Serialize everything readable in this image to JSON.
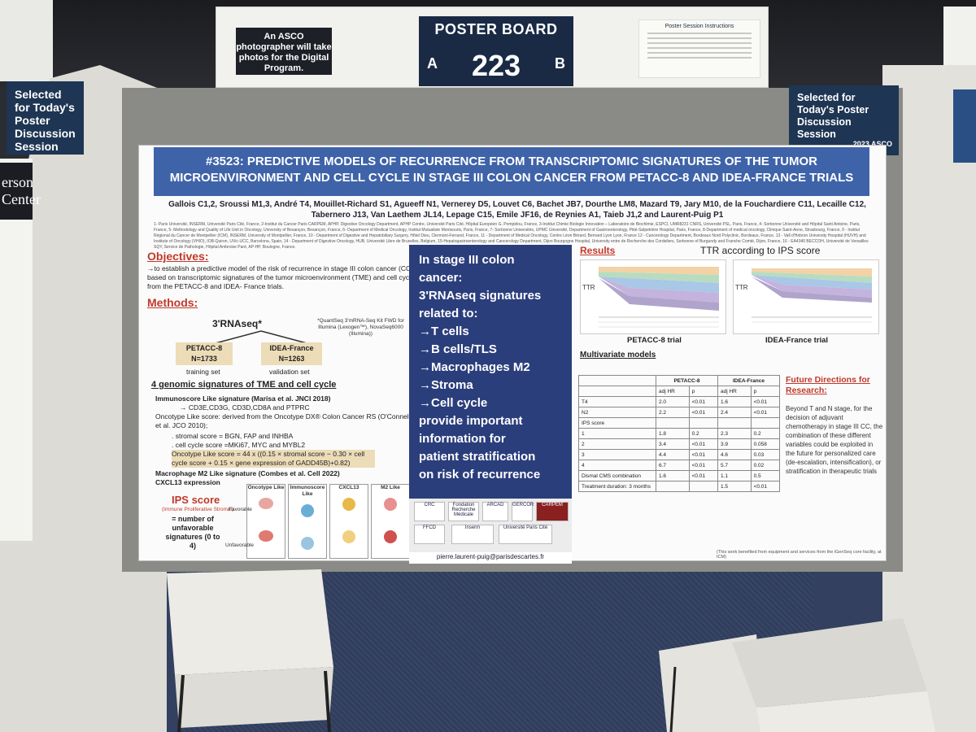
{
  "top_board": {
    "photo_note": "An ASCO photographer will take photos for the Digital Program.",
    "board_label": "POSTER BOARD",
    "board_number": "223",
    "side_a": "A",
    "side_b": "B",
    "instructions_title": "Poster Session Instructions"
  },
  "side_signs": {
    "left_selected": "Selected for Today's Poster Discussion Session",
    "left_dark_text": "erson Center",
    "right_selected": "Selected for Today's Poster Discussion Session",
    "right_logo": "2023 ASCO"
  },
  "poster": {
    "title": "#3523: PREDICTIVE MODELS OF RECURRENCE FROM TRANSCRIPTOMIC SIGNATURES OF THE TUMOR MICROENVIRONMENT AND CELL CYCLE IN STAGE III COLON CANCER FROM PETACC-8 AND IDEA-FRANCE TRIALS",
    "authors": "Gallois C1,2, Sroussi M1,3, André T4, Mouillet-Richard S1, Agueeff N1, Vernerey D5, Louvet C6, Bachet JB7, Dourthe LM8, Mazard T9, Jary M10, de la Fouchardiere C11, Lecaille C12, Tabernero J13, Van Laethem JL14, Lepage C15, Emile JF16, de Reynies A1, Taieb J1,2 and Laurent-Puig P1",
    "affiliations": "1- Paris Université, INSERM, Université Paris Cité, France, 2-Institut du Cancer Paris CARPEM, APHP, Digestive Oncology Department, APHP Centre, Université Paris Cité, Hôpital Européen G. Pompidou, France, 3-Institut Chimie Biologie Innovation – Laboratoire de Biochimie, ESPCI, UMR8231 CNRS, Université PSL, Paris, France, 4- Sorbonne Université and Hôpital Saint Antoine, Paris, France, 5- Methodology and Quality of Life Unit in Oncology, University of Besançon, Besançon, France, 6- Department of Medical Oncology, Institut Mutualiste Montsouris, Paris, France, 7- Sorbonne Universités, UPMC Université, Department of Gastroenterology, Pitié-Salpetrière Hospital, Paris, France, 8-Department of medical oncology, Clinique Saint-Anne, Strasbourg, France, 9 - Institut Régional du Cancer de Montpellier (ICM), INSERM, University of Montpellier, France, 10 - Department of Digestive and Hepatobiliary Surgery, Hôtel Dieu, Clermont-Ferrand, France, 11 - Department of Medical Oncology, Centre Léon Bérard, Bernard Lyon Lyon, France 12 - Cancerology Department, Bordeaux Nord Polyclinic, Bordeaux, France, 13 - Vall d'Hebron University Hospital (HUVH) and Institute of Oncology (VHIO), IOB-Quiron, UVic-UCC, Barcelona, Spain, 14 - Department of Digestive Oncology, HUB, Université Libre de Bruxelles, Belgium, 15-Hepatogastroenterology and Cancerology Department, Dijon Bourgogne Hospital, University entre de Recherche des Cordeliers, Sorbonne of Burgundy and Franche Comté, Dijon, France, 16 - EA4340 BECCOH, Université de Versailles SQY, Service de Pathologie, Hôpital Ambroise Paré, AP-HP, Boulogne, France.",
    "objectives_title": "Objectives:",
    "objectives_text": "→to establish a predictive model of the risk of recurrence in stage III colon cancer (CC) based on transcriptomic signatures of the tumor microenvironment (TME) and cell cycle from the PETACC-8 and IDEA- France trials.",
    "methods_title": "Methods:",
    "rnaseq_label": "3'RNAseq*",
    "rnaseq_note": "*QuantSeq 3'mRNA-Seq Kit FWD for Illumina (Lexogen™), NovaSeq6000 (Illumina))",
    "training_box": "PETACC-8\nN=1733",
    "training_label": "training set",
    "validation_box": "IDEA-France\nN=1263",
    "validation_label": "validation set",
    "signatures_title": "4 genomic signatures of TME and cell cycle",
    "sig1": "Immunoscore Like signature (Marisa et al. JNCI 2018)",
    "sig1_genes": "→ CD3E,CD3G, CD3D,CD8A and PTPRC",
    "sig2": "Oncotype  Like score: derived from the Oncotype DX® Colon Cancer RS (O'Connell et al. JCO 2010);",
    "sig2_a": ". stromal score = BGN,  FAP and INHBA",
    "sig2_b": ". cell cycle score =MKi67, MYC and MYBL2",
    "sig2_formula": "Oncotype Like score = 44 x ((0.15 × stromal score − 0.30 × cell cycle score + 0.15 × gene expression of GADD45B)+0.82)",
    "sig3": "Macrophage M2 Like signature (Combes et al. Cell 2022)",
    "sig4": "CXCL13 expression",
    "ips_title": "IPS score",
    "ips_sub": "(Immune Proliferative Stromal)",
    "ips_def": "= number of unfavorable signatures (0 to 4)",
    "grid_headers": [
      "Oncotype Like",
      "Immunoscore Like",
      "CXCL13",
      "M2 Like"
    ],
    "grid_row_fav": "Favorable",
    "grid_row_unfav": "Unfavorable",
    "mid_text": "In stage III colon cancer: 3'RNAseq signatures related to: →T cells →B cells/TLS →Macrophages M2 →Stroma →Cell cycle provide important information for patient stratification on risk of recurrence",
    "mid_lines": [
      "In stage III colon",
      "cancer:",
      "3'RNAseq signatures",
      "related to:",
      "→T cells",
      "→B cells/TLS",
      "→Macrophages M2",
      "→Stroma",
      "→Cell cycle",
      "provide important",
      "information for",
      "patient stratification",
      "on risk of recurrence"
    ],
    "logos": [
      "CRC",
      "Fondation Recherche Médicale",
      "ARCAD",
      "GERCOR",
      "CARPEM",
      "FFCD",
      "Inserm",
      "Université Paris Cité"
    ],
    "email": "pierre.laurent-puig@parisdescartes.fr",
    "results_title": "Results",
    "ttr_title": "TTR according to IPS score",
    "ttr_label": "TTR",
    "petacc_caption": "PETACC-8 trial",
    "idea_caption": "IDEA-France trial",
    "multivariate_title": "Multivariate models",
    "table": {
      "col_groups": [
        "PETACC-8",
        "IDEA-France"
      ],
      "sub_headers": [
        "adj HR",
        "p",
        "adj HR",
        "p"
      ],
      "rows": [
        [
          "T4",
          "2.0",
          "<0.01",
          "1.6",
          "<0.01"
        ],
        [
          "N2",
          "2.2",
          "<0.01",
          "2.4",
          "<0.01"
        ],
        [
          "IPS  score",
          "",
          "",
          "",
          ""
        ],
        [
          "1",
          "1.8",
          "0.2",
          "2.3",
          "0.2"
        ],
        [
          "2",
          "3.4",
          "<0.01",
          "3.9",
          "0.058"
        ],
        [
          "3",
          "4.4",
          "<0.01",
          "4.6",
          "0.03"
        ],
        [
          "4",
          "6.7",
          "<0.01",
          "5.7",
          "0.02"
        ],
        [
          "Dismal CMS combination",
          "1.6",
          "<0.01",
          "1.1",
          "0.5"
        ],
        [
          "Treatment duration: 3 months",
          "",
          "",
          "1.5",
          "<0.01"
        ]
      ]
    },
    "future_title": "Future Directions for Research:",
    "future_text": "Beyond T and N stage, for the decision of adjuvant chemotherapy in stage III CC, the combination of these different variables could be exploited in the future for personalized care (de-escalation, intensification), or stratification in therapeutic trials",
    "footnote": "(This work benefited from equipment and services from the iGenSeq core facility, at ICM)"
  },
  "colors": {
    "title_bar": "#3f63a9",
    "mid_panel": "#2b3e7c",
    "section_red": "#c0392b",
    "board_sign": "#1a2a45",
    "felt": "#8a8b86"
  }
}
